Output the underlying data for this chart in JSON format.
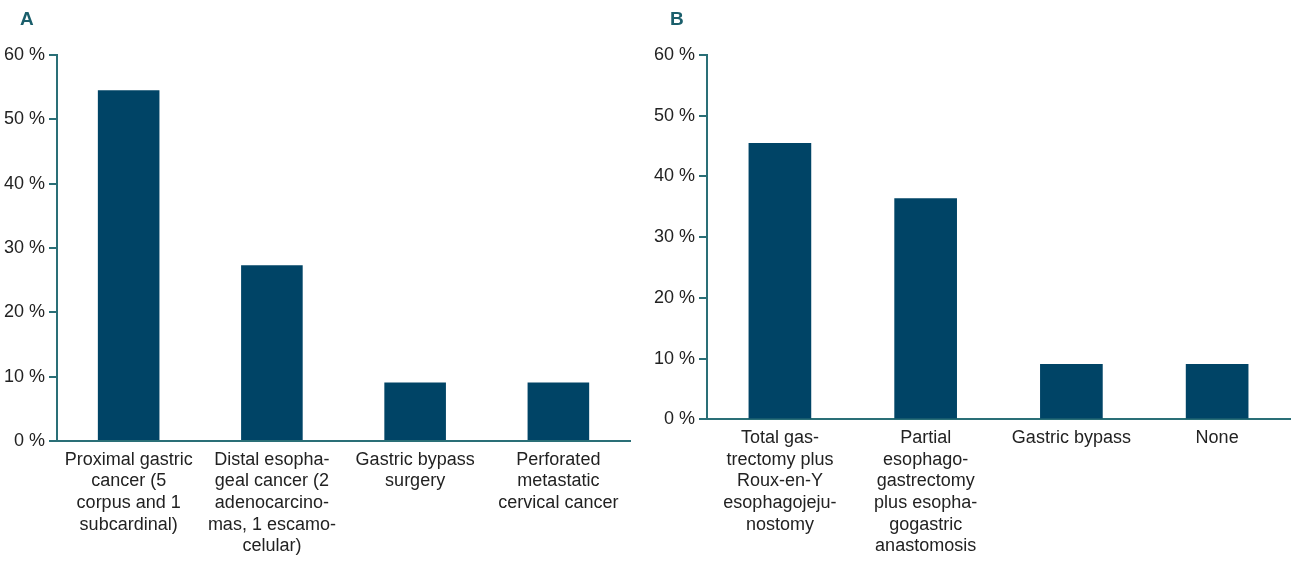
{
  "chart_data": [
    {
      "type": "bar",
      "title": "A",
      "categories": [
        "Proximal gastric\ncancer (5\ncorpus and 1\nsubcardinal)",
        "Distal esopha-\ngeal cancer (2\nadenocarcino-\nmas, 1 escamo-\ncelular)",
        "Gastric bypass\nsurgery",
        "Perforated\nmetastatic\ncervical cancer"
      ],
      "values": [
        54.5,
        27.3,
        9.1,
        9.1
      ],
      "color": "#004466",
      "ylim": [
        0,
        60
      ],
      "yticks": [
        {
          "value": 0,
          "label": "0 %"
        },
        {
          "value": 10,
          "label": "10 %"
        },
        {
          "value": 20,
          "label": "20 %"
        },
        {
          "value": 30,
          "label": "30 %"
        },
        {
          "value": 40,
          "label": "40 %"
        },
        {
          "value": 50,
          "label": "50 %"
        },
        {
          "value": 60,
          "label": "60 %"
        }
      ],
      "grid": false,
      "legend": false
    },
    {
      "type": "bar",
      "title": "B",
      "categories": [
        "Total gas-\ntrectomy plus\nRoux-en-Y\nesophagojeju-\nnostomy",
        "Partial\nesophago-\ngastrectomy\nplus esopha-\ngogastric\nanastomosis",
        "Gastric bypass",
        "None"
      ],
      "values": [
        45.5,
        36.4,
        9.1,
        9.1
      ],
      "color": "#004466",
      "ylim": [
        0,
        60
      ],
      "yticks": [
        {
          "value": 0,
          "label": "0 %"
        },
        {
          "value": 10,
          "label": "10 %"
        },
        {
          "value": 20,
          "label": "20 %"
        },
        {
          "value": 30,
          "label": "30 %"
        },
        {
          "value": 40,
          "label": "40 %"
        },
        {
          "value": 50,
          "label": "50 %"
        },
        {
          "value": 60,
          "label": "60 %"
        }
      ],
      "grid": false,
      "legend": false
    }
  ]
}
